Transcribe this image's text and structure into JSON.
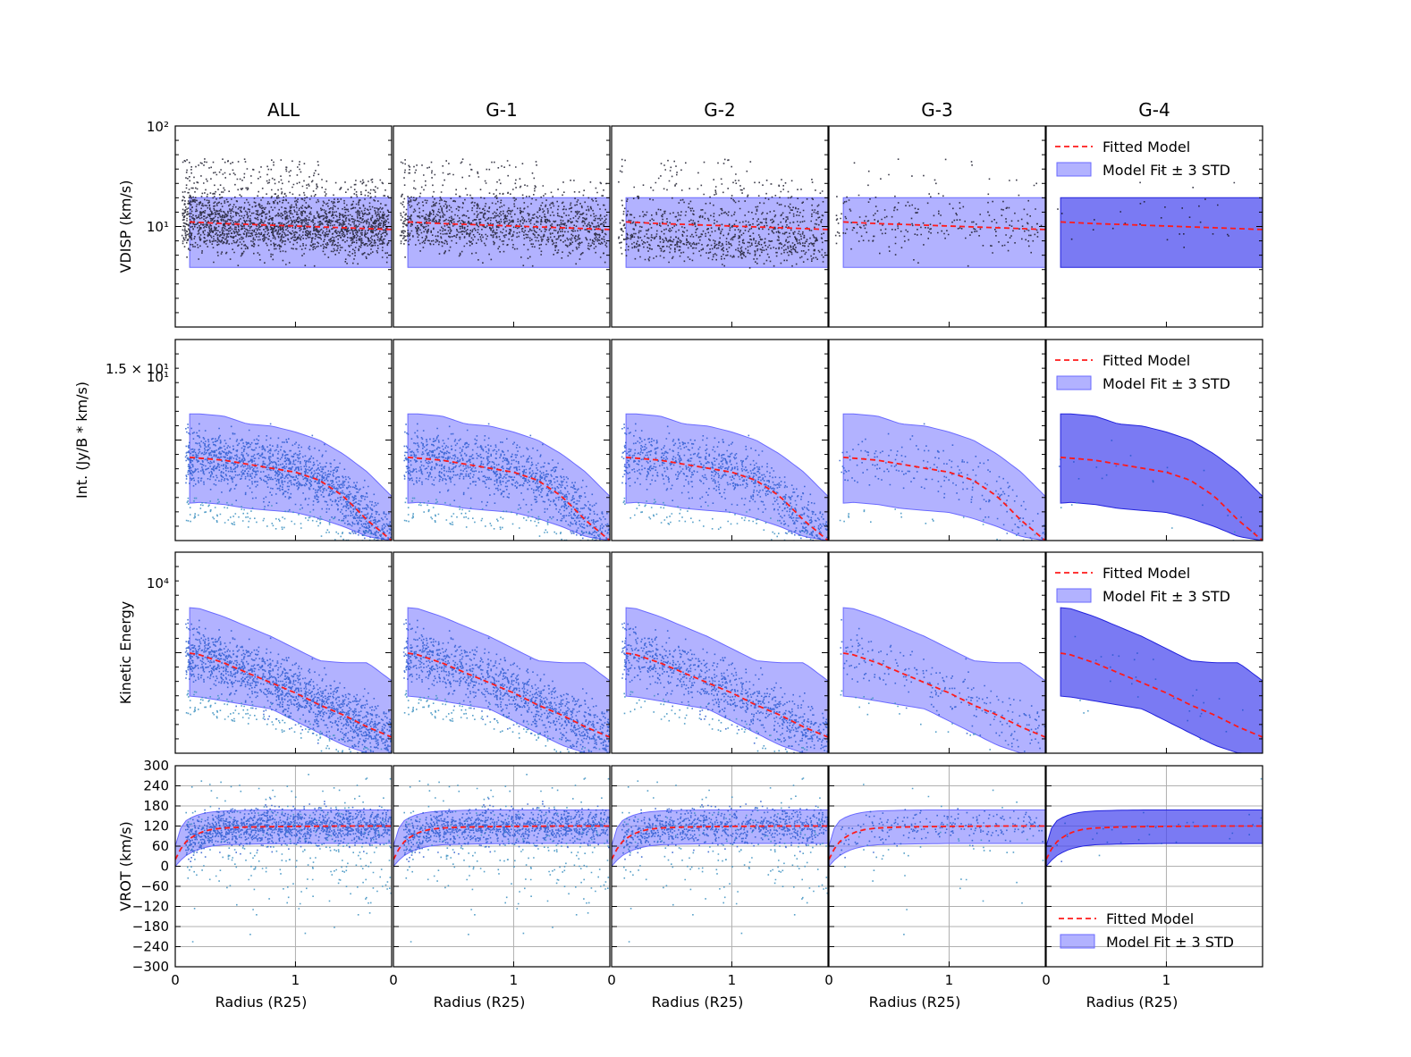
{
  "figure": {
    "columns": [
      "ALL",
      "G-1",
      "G-2",
      "G-3",
      "G-4"
    ],
    "xlabel": "Radius (R25)",
    "x_tick_labels": [
      "0",
      "1"
    ],
    "legend": {
      "fitted": "Fitted Model",
      "band": "Model Fit ± 3 STD"
    }
  },
  "colors": {
    "band": "#7b7bff",
    "band_dark": "#4646ee",
    "fit": "#ff1a1a",
    "points_black": "#1a1a2a",
    "points_blue": "#2255cc",
    "points_light": "#3a8fc0"
  },
  "chart_data": [
    {
      "type": "scatter",
      "row": "VDISP",
      "ylabel": "VDISP (km/s)",
      "yscale": "log",
      "ylim": [
        1.1,
        100
      ],
      "ytick_labels": [
        "10²",
        "10¹"
      ],
      "xlim": [
        0,
        1.8
      ],
      "model_x": [
        0,
        0.2,
        0.4,
        0.6,
        0.8,
        1.0,
        1.2,
        1.4,
        1.6,
        1.8
      ],
      "model_fit": [
        11.8,
        11.5,
        11.2,
        11.0,
        10.8,
        10.6,
        10.4,
        10.2,
        10.0,
        9.8
      ],
      "band_upper": 20,
      "band_lower": 4.2,
      "legend_in": "G-4"
    },
    {
      "type": "scatter",
      "row": "Int",
      "ylabel": "Int. (Jy/B * km/s)",
      "yscale": "log",
      "ytick_labels": [
        "1.5 × 10¹",
        "10¹"
      ],
      "xlim": [
        0,
        1.8
      ],
      "model_x": [
        0,
        0.2,
        0.4,
        0.6,
        0.8,
        1.0,
        1.2,
        1.4,
        1.6,
        1.8
      ],
      "legend_in": "G-4"
    },
    {
      "type": "scatter",
      "row": "KE",
      "ylabel": "Kinetic Energy",
      "yscale": "log",
      "ytick_labels": [
        "10⁴"
      ],
      "xlim": [
        0,
        1.8
      ],
      "model_x": [
        0,
        0.2,
        0.4,
        0.6,
        0.8,
        1.0,
        1.2,
        1.4,
        1.6,
        1.8
      ],
      "legend_in": "G-4"
    },
    {
      "type": "scatter",
      "row": "VROT",
      "ylabel": "VROT (km/s)",
      "ylim": [
        -300,
        300
      ],
      "yticks": [
        300,
        240,
        180,
        120,
        60,
        0,
        -60,
        -120,
        -180,
        -240,
        -300
      ],
      "ytick_labels": [
        "300",
        "240",
        "180",
        "120",
        "60",
        "0",
        "−60",
        "−120",
        "−180",
        "−240",
        "−300"
      ],
      "xlim": [
        0,
        1.8
      ],
      "grid": true,
      "model_x": [
        0,
        0.05,
        0.1,
        0.2,
        0.3,
        0.4,
        0.6,
        0.8,
        1.0,
        1.4,
        1.8
      ],
      "model_fit": [
        20,
        55,
        78,
        100,
        110,
        114,
        117,
        118,
        119,
        120,
        120
      ],
      "band_upper": [
        60,
        120,
        140,
        155,
        162,
        165,
        167,
        168,
        168,
        168,
        168
      ],
      "band_lower": [
        0,
        20,
        35,
        52,
        60,
        64,
        66,
        67,
        68,
        68,
        68
      ],
      "legend_in": "G-4"
    }
  ]
}
